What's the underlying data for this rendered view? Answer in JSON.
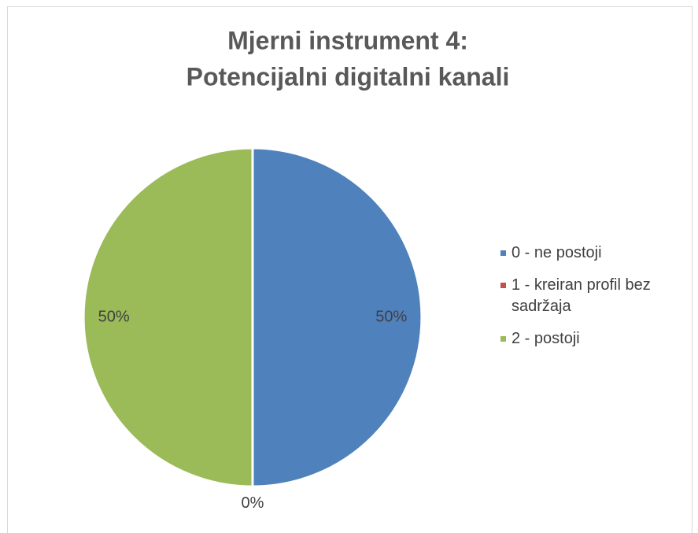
{
  "chart_data": {
    "type": "pie",
    "title": [
      "Mjerni instrument 4:",
      "Potencijalni digitalni kanali"
    ],
    "categories": [
      "0 - ne postoji",
      "1 - kreiran profil bez sadržaja",
      "2 - postoji"
    ],
    "values": [
      50,
      0,
      50
    ],
    "value_labels": [
      "50%",
      "0%",
      "50%"
    ],
    "colors": [
      "#4f81bd",
      "#c0504d",
      "#9bbb59"
    ],
    "legend": "right"
  }
}
